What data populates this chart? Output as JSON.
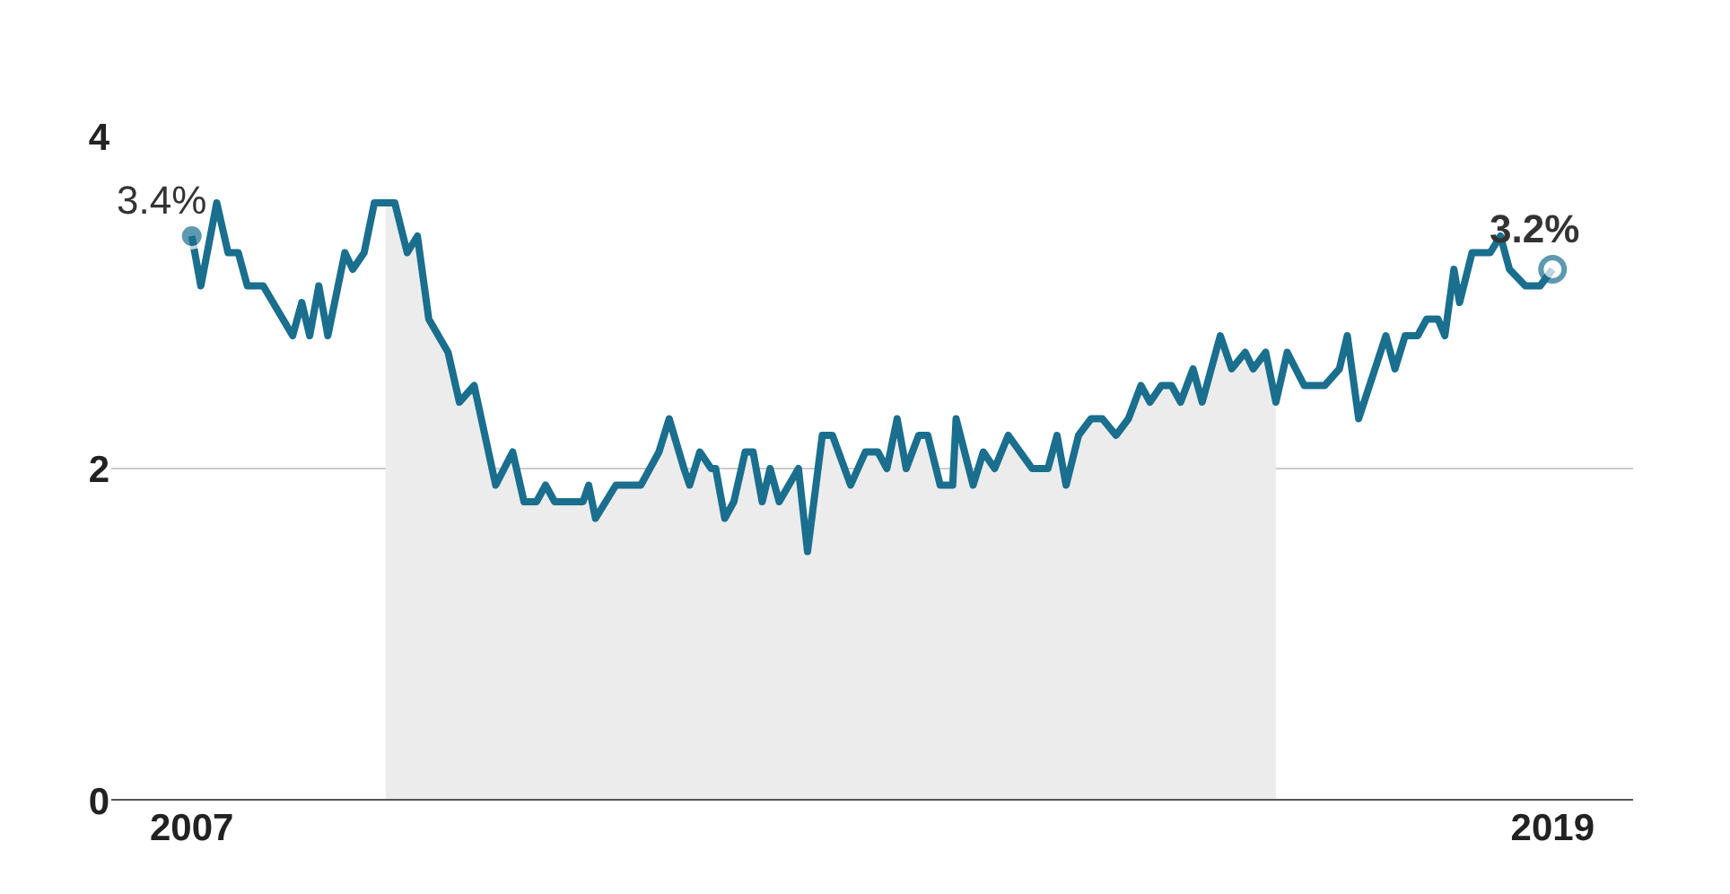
{
  "chart_data": {
    "type": "line",
    "x": [
      2007.0,
      2007.08,
      2007.22,
      2007.32,
      2007.41,
      2007.49,
      2007.63,
      2007.89,
      2007.97,
      2008.04,
      2008.12,
      2008.2,
      2008.35,
      2008.42,
      2008.52,
      2008.61,
      2008.79,
      2008.9,
      2008.99,
      2009.09,
      2009.26,
      2009.36,
      2009.49,
      2009.68,
      2009.83,
      2009.93,
      2010.04,
      2010.12,
      2010.2,
      2010.45,
      2010.5,
      2010.56,
      2010.74,
      2010.96,
      2011.12,
      2011.21,
      2011.34,
      2011.39,
      2011.48,
      2011.58,
      2011.62,
      2011.7,
      2011.78,
      2011.88,
      2011.95,
      2012.03,
      2012.1,
      2012.18,
      2012.35,
      2012.43,
      2012.56,
      2012.65,
      2012.81,
      2012.94,
      2013.05,
      2013.13,
      2013.22,
      2013.3,
      2013.41,
      2013.49,
      2013.6,
      2013.71,
      2013.74,
      2013.89,
      2013.98,
      2014.08,
      2014.2,
      2014.41,
      2014.55,
      2014.63,
      2014.71,
      2014.82,
      2014.93,
      2015.03,
      2015.15,
      2015.26,
      2015.37,
      2015.45,
      2015.55,
      2015.64,
      2015.72,
      2015.83,
      2015.91,
      2016.07,
      2016.17,
      2016.29,
      2016.36,
      2016.47,
      2016.56,
      2016.66,
      2016.81,
      2016.99,
      2017.12,
      2017.19,
      2017.29,
      2017.53,
      2017.61,
      2017.7,
      2017.81,
      2017.89,
      2017.99,
      2018.05,
      2018.13,
      2018.18,
      2018.29,
      2018.45,
      2018.54,
      2018.62,
      2018.76,
      2018.89,
      2019.0
    ],
    "series": [
      {
        "type": "area",
        "color": "#ececec",
        "x": [
          2008.71,
          2008.79,
          2008.9,
          2008.99,
          2009.09,
          2009.26,
          2009.36,
          2009.49,
          2009.68,
          2009.83,
          2009.93,
          2010.04,
          2010.12,
          2010.2,
          2010.45,
          2010.5,
          2010.56,
          2010.74,
          2010.96,
          2011.12,
          2011.21,
          2011.34,
          2011.39,
          2011.48,
          2011.58,
          2011.62,
          2011.7,
          2011.78,
          2011.88,
          2011.95,
          2012.03,
          2012.1,
          2012.18,
          2012.35,
          2012.43,
          2012.56,
          2012.65,
          2012.81,
          2012.94,
          2013.05,
          2013.13,
          2013.22,
          2013.3,
          2013.41,
          2013.49,
          2013.6,
          2013.71,
          2013.74,
          2013.89,
          2013.98,
          2014.08,
          2014.2,
          2014.41,
          2014.55,
          2014.63,
          2014.71,
          2014.82,
          2014.93,
          2015.03,
          2015.15,
          2015.26,
          2015.37,
          2015.45,
          2015.55,
          2015.64,
          2015.72,
          2015.83,
          2015.91,
          2016.07,
          2016.17,
          2016.29,
          2016.36,
          2016.47,
          2016.56
        ],
        "values": [
          3.6,
          3.6,
          3.3,
          3.4,
          2.9,
          2.7,
          2.4,
          2.5,
          1.9,
          2.1,
          1.8,
          1.8,
          1.9,
          1.8,
          1.8,
          1.9,
          1.7,
          1.9,
          1.9,
          2.1,
          2.3,
          2.0,
          1.9,
          2.1,
          2.0,
          2.0,
          1.7,
          1.8,
          2.1,
          2.1,
          1.8,
          2.0,
          1.8,
          2.0,
          1.5,
          2.2,
          2.2,
          1.9,
          2.1,
          2.1,
          2.0,
          2.3,
          2.0,
          2.2,
          2.2,
          1.9,
          1.9,
          2.3,
          1.9,
          2.1,
          2.0,
          2.2,
          2.0,
          2.0,
          2.2,
          1.9,
          2.2,
          2.3,
          2.3,
          2.2,
          2.3,
          2.5,
          2.4,
          2.5,
          2.5,
          2.4,
          2.6,
          2.4,
          2.8,
          2.6,
          2.7,
          2.6,
          2.7,
          2.4
        ]
      },
      {
        "color": "#1a6e8e",
        "values": [
          3.4,
          3.1,
          3.6,
          3.3,
          3.3,
          3.1,
          3.1,
          2.8,
          3.0,
          2.8,
          3.1,
          2.8,
          3.3,
          3.2,
          3.3,
          3.6,
          3.6,
          3.3,
          3.4,
          2.9,
          2.7,
          2.4,
          2.5,
          1.9,
          2.1,
          1.8,
          1.8,
          1.9,
          1.8,
          1.8,
          1.9,
          1.7,
          1.9,
          1.9,
          2.1,
          2.3,
          2.0,
          1.9,
          2.1,
          2.0,
          2.0,
          1.7,
          1.8,
          2.1,
          2.1,
          1.8,
          2.0,
          1.8,
          2.0,
          1.5,
          2.2,
          2.2,
          1.9,
          2.1,
          2.1,
          2.0,
          2.3,
          2.0,
          2.2,
          2.2,
          1.9,
          1.9,
          2.3,
          1.9,
          2.1,
          2.0,
          2.2,
          2.0,
          2.0,
          2.2,
          1.9,
          2.2,
          2.3,
          2.3,
          2.2,
          2.3,
          2.5,
          2.4,
          2.5,
          2.5,
          2.4,
          2.6,
          2.4,
          2.8,
          2.6,
          2.7,
          2.6,
          2.7,
          2.4,
          2.7,
          2.5,
          2.5,
          2.6,
          2.8,
          2.3,
          2.8,
          2.6,
          2.8,
          2.8,
          2.9,
          2.9,
          2.8,
          3.2,
          3.0,
          3.3,
          3.3,
          3.4,
          3.2,
          3.1,
          3.1,
          3.2
        ]
      }
    ],
    "xlim": [
      2006.29,
      2019.71
    ],
    "xticks": [
      2007,
      2019
    ],
    "ylim": [
      0,
      4
    ],
    "yticks": [
      0,
      2,
      4
    ],
    "grid": "y",
    "marker": "none",
    "line_style": "solid",
    "annotations": [
      {
        "text": "3.4%",
        "x": 2007.0,
        "y": 3.4
      },
      {
        "text": "3.2%",
        "x": 2019.0,
        "y": 3.2
      }
    ]
  }
}
